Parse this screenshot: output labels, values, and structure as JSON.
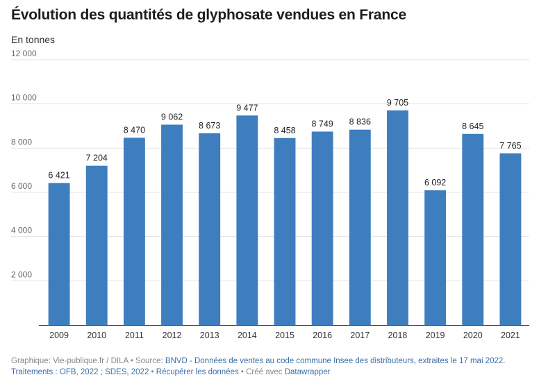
{
  "header": {
    "title": "Évolution des quantités de glyphosate vendues en France",
    "subtitle": "En tonnes"
  },
  "chart_data": {
    "type": "bar",
    "title": "Évolution des quantités de glyphosate vendues en France",
    "ylabel": "En tonnes",
    "xlabel": "",
    "categories": [
      "2009",
      "2010",
      "2011",
      "2012",
      "2013",
      "2014",
      "2015",
      "2016",
      "2017",
      "2018",
      "2019",
      "2020",
      "2021"
    ],
    "values": [
      6421,
      7204,
      8470,
      9062,
      8673,
      9477,
      8458,
      8749,
      8836,
      9705,
      6092,
      8645,
      7765
    ],
    "value_labels": [
      "6 421",
      "7 204",
      "8 470",
      "9 062",
      "8 673",
      "9 477",
      "8 458",
      "8 749",
      "8 836",
      "9 705",
      "6 092",
      "8 645",
      "7 765"
    ],
    "ylim": [
      0,
      12000
    ],
    "yticks": [
      2000,
      4000,
      6000,
      8000,
      10000,
      12000
    ],
    "ytick_labels": [
      "2 000",
      "4 000",
      "6 000",
      "8 000",
      "10 000",
      "12 000"
    ],
    "grid": true,
    "bar_color": "#3e7ebf"
  },
  "footer": {
    "prefix": "Graphique: Vie-publique.fr / DILA • Source: ",
    "source_link": "BNVD - Données de ventes au code commune Insee des distributeurs, extraites le 17 mai 2022. Traitements : OFB, 2022 ; SDES, 2022",
    "sep1": " • ",
    "download_link": "Récupérer les données",
    "sep2": " • Créé avec ",
    "tool_link": "Datawrapper"
  }
}
